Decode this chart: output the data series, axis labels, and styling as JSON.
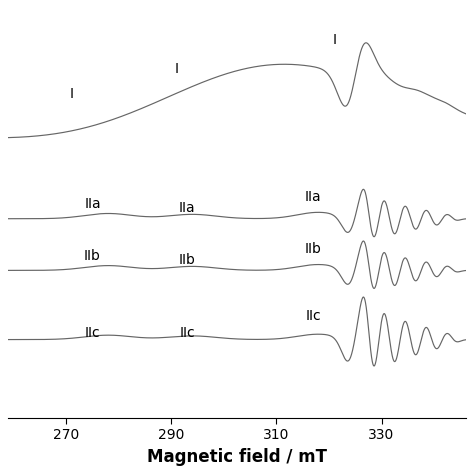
{
  "xlim": [
    259,
    346
  ],
  "xlabel": "Magnetic field / mT",
  "xlabel_fontsize": 12,
  "xlabel_fontweight": "bold",
  "xticks": [
    270,
    290,
    310,
    330
  ],
  "background_color": "#ffffff",
  "line_color": "#666666",
  "line_width": 0.85,
  "offsets": {
    "I": 3.2,
    "IIa": 2.05,
    "IIb": 1.45,
    "IIc": 0.55
  },
  "label_fontsize": 10
}
